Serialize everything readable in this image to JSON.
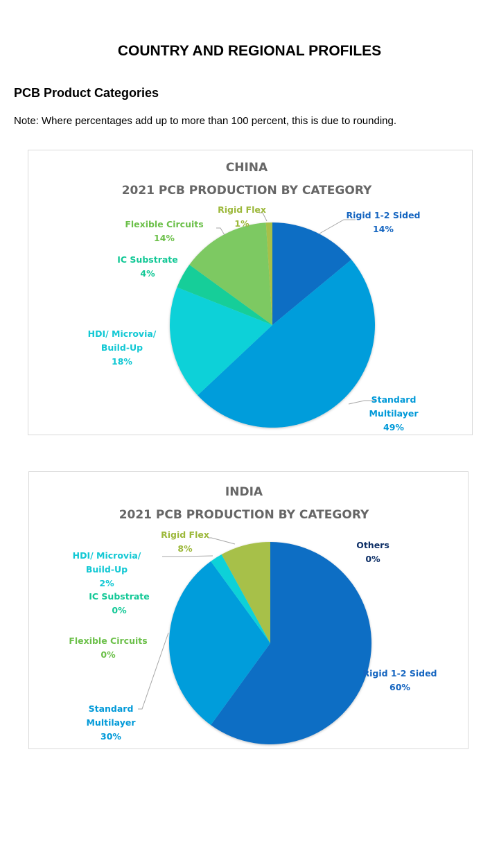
{
  "page": {
    "title": "COUNTRY AND REGIONAL PROFILES",
    "section": "PCB Product Categories",
    "note": "Note: Where percentages add up to more than 100 percent, this is due to rounding."
  },
  "chart_data": [
    {
      "type": "pie",
      "title": "CHINA",
      "subtitle": "2021 PCB PRODUCTION BY CATEGORY",
      "slices": [
        {
          "label": [
            "Rigid 1-2 Sided"
          ],
          "value": 14,
          "pct": "14%",
          "color": "#106EC4",
          "label_color": "#1565C0"
        },
        {
          "label": [
            "Standard",
            "Multilayer"
          ],
          "value": 49,
          "pct": "49%",
          "color": "#009DDB",
          "label_color": "#0099D8"
        },
        {
          "label": [
            "HDI/ Microvia/",
            "Build-Up"
          ],
          "value": 18,
          "pct": "18%",
          "color": "#0BD1D8",
          "label_color": "#12C8D4"
        },
        {
          "label": [
            "IC Substrate"
          ],
          "value": 4,
          "pct": "4%",
          "color": "#12CE99",
          "label_color": "#12C896"
        },
        {
          "label": [
            "Flexible Circuits"
          ],
          "value": 14,
          "pct": "14%",
          "color": "#7DC962",
          "label_color": "#6CC04A"
        },
        {
          "label": [
            "Rigid Flex"
          ],
          "value": 1,
          "pct": "1%",
          "color": "#A7C04A",
          "label_color": "#9CB83A"
        }
      ]
    },
    {
      "type": "pie",
      "title": "INDIA",
      "subtitle": "2021 PCB PRODUCTION BY CATEGORY",
      "slices": [
        {
          "label": [
            "Rigid 1-2 Sided"
          ],
          "value": 60,
          "pct": "60%",
          "color": "#106EC4",
          "label_color": "#1565C0"
        },
        {
          "label": [
            "Standard",
            "Multilayer"
          ],
          "value": 30,
          "pct": "30%",
          "color": "#009DDB",
          "label_color": "#0099D8"
        },
        {
          "label": [
            "HDI/ Microvia/",
            "Build-Up"
          ],
          "value": 2,
          "pct": "2%",
          "color": "#0BD1D8",
          "label_color": "#12C8D4"
        },
        {
          "label": [
            "IC Substrate"
          ],
          "value": 0,
          "pct": "0%",
          "color": "#12CE99",
          "label_color": "#12C896"
        },
        {
          "label": [
            "Flexible Circuits"
          ],
          "value": 0,
          "pct": "0%",
          "color": "#7DC962",
          "label_color": "#6CC04A"
        },
        {
          "label": [
            "Rigid Flex"
          ],
          "value": 8,
          "pct": "8%",
          "color": "#A7C04A",
          "label_color": "#9CB83A"
        },
        {
          "label": [
            "Others"
          ],
          "value": 0,
          "pct": "0%",
          "color": "#0D3A6E",
          "label_color": "#0D2F66"
        }
      ]
    }
  ]
}
